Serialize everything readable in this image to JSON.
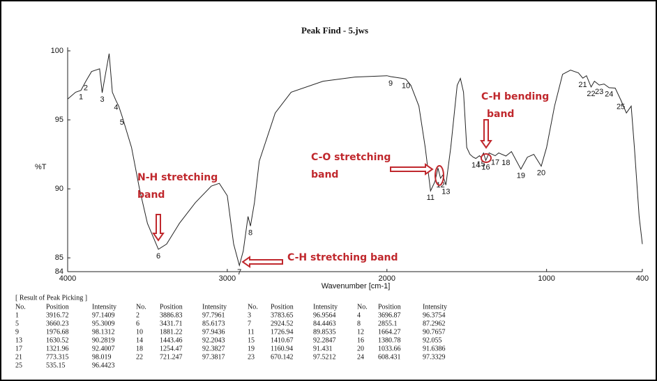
{
  "chart_data": {
    "type": "line",
    "title": "Peak Find - 5.jws",
    "x_label": "Wavenumber [cm-1]",
    "y_label": "%T",
    "xlim": [
      4000,
      400
    ],
    "ylim": [
      84,
      100
    ],
    "xticks": [
      4000,
      3000,
      2000,
      1000,
      400
    ],
    "yticks": [
      84,
      85,
      90,
      95,
      100
    ],
    "grid": false,
    "series": [
      {
        "color": "#222222",
        "x": [
          4000,
          3950,
          3916.72,
          3886,
          3850,
          3800,
          3783.65,
          3760,
          3740,
          3720,
          3696.87,
          3680,
          3660.23,
          3600,
          3550,
          3500,
          3431.71,
          3380,
          3300,
          3200,
          3100,
          3050,
          3000,
          2960,
          2924.52,
          2900,
          2870,
          2855.1,
          2830,
          2800,
          2700,
          2600,
          2400,
          2200,
          2000,
          1976.68,
          1900,
          1881.22,
          1850,
          1800,
          1760,
          1726.94,
          1700,
          1680,
          1664.27,
          1650,
          1630.52,
          1600,
          1560,
          1540,
          1520,
          1500,
          1480,
          1460,
          1443.46,
          1420,
          1410.67,
          1395,
          1380.78,
          1360,
          1321.96,
          1300,
          1254.47,
          1220,
          1160.94,
          1120,
          1080,
          1033.66,
          1000,
          950,
          900,
          850,
          800,
          773.315,
          750,
          721.247,
          700,
          670.142,
          640,
          608.431,
          570,
          535.15,
          500,
          470,
          450,
          420,
          400
        ],
        "values": [
          96.5,
          97.0,
          97.14,
          97.8,
          98.5,
          98.7,
          96.96,
          98.5,
          99.8,
          97.0,
          96.38,
          96.0,
          95.3,
          93.0,
          90.0,
          87.5,
          85.62,
          86.0,
          87.5,
          89.0,
          90.2,
          90.4,
          89.5,
          86.0,
          84.45,
          85.5,
          88.0,
          87.3,
          89.0,
          92.0,
          95.5,
          97.0,
          97.8,
          98.1,
          98.2,
          98.13,
          98.0,
          97.94,
          97.5,
          96.0,
          93.0,
          89.85,
          90.5,
          91.5,
          90.77,
          91.0,
          90.28,
          93.0,
          97.5,
          98.0,
          97.0,
          93.0,
          92.5,
          92.3,
          92.2,
          92.4,
          92.28,
          92.6,
          92.06,
          92.6,
          92.4,
          92.6,
          92.38,
          92.7,
          91.43,
          92.3,
          92.5,
          91.64,
          93.0,
          96.0,
          98.3,
          98.6,
          98.4,
          98.02,
          98.2,
          97.38,
          97.8,
          97.52,
          97.6,
          97.33,
          97.3,
          96.44,
          95.5,
          96.0,
          93.0,
          88.0,
          86.0
        ]
      }
    ],
    "peaks": {
      "labels": [
        "1",
        "2",
        "3",
        "4",
        "5",
        "6",
        "7",
        "8",
        "9",
        "10",
        "11",
        "12",
        "13",
        "14",
        "15",
        "16",
        "17",
        "18",
        "19",
        "20",
        "21",
        "22",
        "23",
        "24",
        "25"
      ],
      "x": [
        3916.72,
        3886.83,
        3783.65,
        3696.87,
        3660.23,
        3431.71,
        2924.52,
        2855.1,
        1976.68,
        1881.22,
        1726.94,
        1664.27,
        1630.52,
        1443.46,
        1410.67,
        1380.78,
        1321.96,
        1254.47,
        1160.94,
        1033.66,
        773.315,
        721.247,
        670.142,
        608.431,
        535.15
      ],
      "values": [
        97.1409,
        97.7961,
        96.9564,
        96.3754,
        95.3009,
        85.6173,
        84.4463,
        87.2962,
        98.1312,
        97.9436,
        89.8535,
        90.7657,
        90.2819,
        92.2043,
        92.2847,
        92.055,
        92.4007,
        92.3827,
        91.431,
        91.6386,
        98.019,
        97.3817,
        97.5212,
        97.3329,
        96.4423
      ]
    },
    "annotations": [
      {
        "lines": [
          "N-H stretching",
          "band"
        ]
      },
      {
        "lines": [
          "C-H stretching band"
        ]
      },
      {
        "lines": [
          "C-O stretching",
          "band"
        ]
      },
      {
        "lines": [
          "C-H bending",
          "band"
        ]
      }
    ]
  },
  "table": {
    "title": "[ Result of Peak Picking ]",
    "headers": [
      "No.",
      "Position",
      "Intensity",
      "No.",
      "Position",
      "Intensity",
      "No.",
      "Position",
      "Intensity",
      "No.",
      "Position",
      "Intensity"
    ],
    "rows": [
      [
        "1",
        "3916.72",
        "97.1409",
        "2",
        "3886.83",
        "97.7961",
        "3",
        "3783.65",
        "96.9564",
        "4",
        "3696.87",
        "96.3754"
      ],
      [
        "5",
        "3660.23",
        "95.3009",
        "6",
        "3431.71",
        "85.6173",
        "7",
        "2924.52",
        "84.4463",
        "8",
        "2855.1",
        "87.2962"
      ],
      [
        "9",
        "1976.68",
        "98.1312",
        "10",
        "1881.22",
        "97.9436",
        "11",
        "1726.94",
        "89.8535",
        "12",
        "1664.27",
        "90.7657"
      ],
      [
        "13",
        "1630.52",
        "90.2819",
        "14",
        "1443.46",
        "92.2043",
        "15",
        "1410.67",
        "92.2847",
        "16",
        "1380.78",
        "92.055"
      ],
      [
        "17",
        "1321.96",
        "92.4007",
        "18",
        "1254.47",
        "92.3827",
        "19",
        "1160.94",
        "91.431",
        "20",
        "1033.66",
        "91.6386"
      ],
      [
        "21",
        "773.315",
        "98.019",
        "22",
        "721.247",
        "97.3817",
        "23",
        "670.142",
        "97.5212",
        "24",
        "608.431",
        "97.3329"
      ],
      [
        "25",
        "535.15",
        "96.4423"
      ]
    ]
  }
}
